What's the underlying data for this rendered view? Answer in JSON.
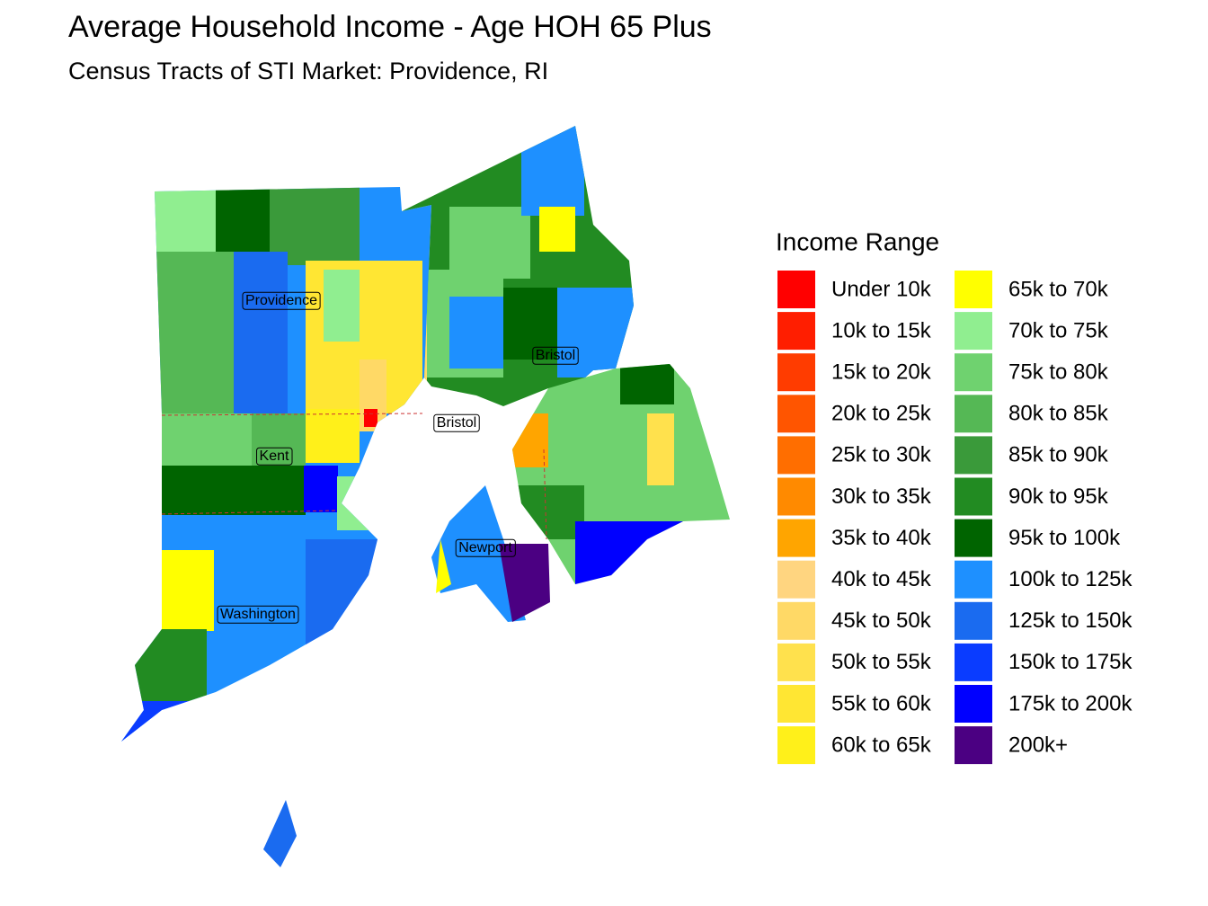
{
  "header": {
    "title": "Average Household Income - Age HOH 65 Plus",
    "subtitle": "Census Tracts of STI Market: Providence, RI"
  },
  "legend": {
    "title": "Income Range",
    "items": [
      {
        "label": "Under 10k",
        "color": "#FF0000"
      },
      {
        "label": "10k to 15k",
        "color": "#FF1E00"
      },
      {
        "label": "15k to 20k",
        "color": "#FF3C00"
      },
      {
        "label": "20k to 25k",
        "color": "#FF5500"
      },
      {
        "label": "25k to 30k",
        "color": "#FF6E00"
      },
      {
        "label": "30k to 35k",
        "color": "#FF8A00"
      },
      {
        "label": "35k to 40k",
        "color": "#FFA500"
      },
      {
        "label": "40k to 45k",
        "color": "#FFD580"
      },
      {
        "label": "45k to 50k",
        "color": "#FFD966"
      },
      {
        "label": "50k to 55k",
        "color": "#FFE14D"
      },
      {
        "label": "55k to 60k",
        "color": "#FFE633"
      },
      {
        "label": "60k to 65k",
        "color": "#FFF01A"
      },
      {
        "label": "65k to 70k",
        "color": "#FFFF00"
      },
      {
        "label": "70k to 75k",
        "color": "#90EE90"
      },
      {
        "label": "75k to 80k",
        "color": "#6FD26F"
      },
      {
        "label": "80k to 85k",
        "color": "#55B855"
      },
      {
        "label": "85k to 90k",
        "color": "#3A9A3A"
      },
      {
        "label": "90k to 95k",
        "color": "#228B22"
      },
      {
        "label": "95k to 100k",
        "color": "#006400"
      },
      {
        "label": "100k to 125k",
        "color": "#1E90FF"
      },
      {
        "label": "125k to 150k",
        "color": "#1A6BF0"
      },
      {
        "label": "150k to 175k",
        "color": "#0A3CFF"
      },
      {
        "label": "175k to 200k",
        "color": "#0000FF"
      },
      {
        "label": "200k+",
        "color": "#4B0082"
      }
    ]
  },
  "map": {
    "labels": [
      "Providence",
      "Bristol",
      "Bristol",
      "Kent",
      "Newport",
      "Washington"
    ]
  }
}
